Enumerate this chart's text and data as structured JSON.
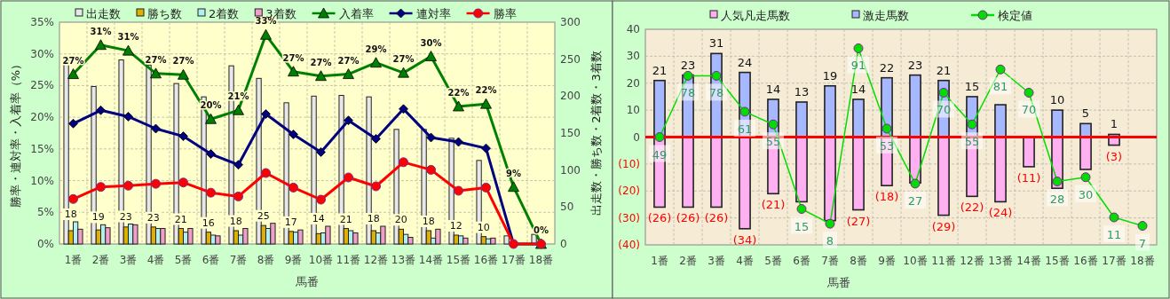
{
  "chart_data": [
    {
      "type": "bar",
      "categories": [
        "1番",
        "2番",
        "3番",
        "4番",
        "5番",
        "6番",
        "7番",
        "8番",
        "9番",
        "10番",
        "11番",
        "12番",
        "13番",
        "14番",
        "15番",
        "16番",
        "17番",
        "18番"
      ],
      "xlabel": "馬番",
      "ylabel": "勝率・連対率・入着率（%）",
      "y2label": "出走数・勝ち数・2着数・3着数",
      "ylim": [
        0,
        35
      ],
      "yticks": [
        {
          "value": 0,
          "label": "0%"
        },
        {
          "value": 5,
          "label": "5%"
        },
        {
          "value": 10,
          "label": "10%"
        },
        {
          "value": 15,
          "label": "15%"
        },
        {
          "value": 20,
          "label": "20%"
        },
        {
          "value": 25,
          "label": "25%"
        },
        {
          "value": 30,
          "label": "30%"
        },
        {
          "value": 35,
          "label": "35%"
        }
      ],
      "y2lim": [
        0,
        300
      ],
      "y2ticks": [
        0,
        50,
        100,
        150,
        200,
        250,
        300
      ],
      "grid": true,
      "legend": "top",
      "series": [
        {
          "name": "出走数",
          "axis": "y2",
          "color": "#e8e8e8",
          "values": [
            253,
            213,
            249,
            242,
            217,
            199,
            241,
            224,
            191,
            200,
            201,
            199,
            155,
            155,
            143,
            113,
            11,
            13
          ]
        },
        {
          "name": "勝ち数",
          "axis": "y2",
          "color": "#e0b000",
          "values": [
            18,
            19,
            23,
            23,
            21,
            16,
            18,
            25,
            17,
            14,
            21,
            18,
            20,
            18,
            12,
            10,
            0,
            0
          ],
          "value_labels": [
            "18",
            "19",
            "23",
            "23",
            "21",
            "16",
            "18",
            "25",
            "17",
            "14",
            "21",
            "18",
            "20",
            "18",
            "12",
            "10",
            null,
            null
          ]
        },
        {
          "name": "2着数",
          "axis": "y2",
          "color": "#b0f0f0",
          "values": [
            30,
            26,
            27,
            21,
            16,
            12,
            12,
            21,
            16,
            15,
            18,
            15,
            13,
            8,
            11,
            7,
            0,
            0
          ]
        },
        {
          "name": "3着数",
          "axis": "y2",
          "color": "#f0a0c8",
          "values": [
            20,
            22,
            26,
            21,
            21,
            11,
            21,
            28,
            19,
            24,
            15,
            24,
            9,
            20,
            8,
            8,
            0,
            0
          ]
        },
        {
          "name": "入着率",
          "type": "line",
          "axis": "y",
          "color": "#008000",
          "marker": "triangle",
          "values": [
            26.8,
            31.4,
            30.5,
            26.9,
            26.7,
            19.7,
            21.1,
            33.0,
            27.2,
            26.5,
            26.8,
            28.6,
            27.0,
            29.6,
            21.7,
            22.1,
            9.0,
            0
          ],
          "value_labels": [
            "27%",
            "31%",
            "31%",
            "27%",
            "27%",
            "20%",
            "21%",
            "33%",
            "27%",
            "27%",
            "27%",
            "29%",
            "27%",
            "30%",
            "22%",
            "22%",
            "9%",
            "0%"
          ]
        },
        {
          "name": "連対率",
          "type": "line",
          "axis": "y",
          "color": "#000080",
          "marker": "diamond",
          "values": [
            19.0,
            21.1,
            20.1,
            18.2,
            17.0,
            14.2,
            12.5,
            20.5,
            17.3,
            14.5,
            19.5,
            16.6,
            21.3,
            16.8,
            16.1,
            15.1,
            0,
            0
          ]
        },
        {
          "name": "勝率",
          "type": "line",
          "axis": "y",
          "color": "#ff0000",
          "marker": "circle",
          "values": [
            7.1,
            9.0,
            9.2,
            9.5,
            9.7,
            8.1,
            7.5,
            11.2,
            8.9,
            7.0,
            10.5,
            9.1,
            12.9,
            11.7,
            8.4,
            8.9,
            0,
            0
          ]
        }
      ]
    },
    {
      "type": "bar",
      "stacked": true,
      "categories": [
        "1番",
        "2番",
        "3番",
        "4番",
        "5番",
        "6番",
        "7番",
        "8番",
        "9番",
        "10番",
        "11番",
        "12番",
        "13番",
        "14番",
        "15番",
        "16番",
        "17番",
        "18番"
      ],
      "xlabel": "馬番",
      "ylim": [
        -40,
        40
      ],
      "yticks": [
        {
          "value": -40,
          "label": "(40)"
        },
        {
          "value": -30,
          "label": "(30)"
        },
        {
          "value": -20,
          "label": "(20)"
        },
        {
          "value": -10,
          "label": "(10)"
        },
        0,
        10,
        20,
        30,
        40
      ],
      "y2lim": [
        -2,
        100
      ],
      "tick_labels": "xy",
      "grid": true,
      "legend": "top",
      "ref_lines": [
        {
          "axis": "y",
          "value": 0,
          "color": "#ff0000"
        }
      ],
      "series": [
        {
          "name": "人気凡走馬数",
          "color": "#ffb0f0",
          "values": [
            -26,
            -26,
            -26,
            -34,
            -21,
            -24,
            -31,
            -27,
            -18,
            -17,
            -29,
            -22,
            -24,
            -11,
            -19,
            -12,
            -3,
            null
          ],
          "value_labels": [
            "(26)",
            "(26)",
            "(26)",
            "(34)",
            "(21)",
            null,
            null,
            "(27)",
            "(18)",
            null,
            "(29)",
            "(22)",
            "(24)",
            "(11)",
            null,
            null,
            "(3)",
            null
          ]
        },
        {
          "name": "激走馬数",
          "color": "#a8b8ff",
          "values": [
            21,
            23,
            31,
            24,
            14,
            13,
            19,
            14,
            22,
            23,
            21,
            15,
            12,
            null,
            10,
            5,
            1,
            null
          ],
          "value_labels": [
            "21",
            "23",
            "31",
            "24",
            "14",
            "13",
            "19",
            "14",
            "22",
            "23",
            "21",
            "15",
            null,
            null,
            "10",
            "5",
            "1",
            null
          ]
        },
        {
          "name": "検定値",
          "type": "line",
          "axis": "y2",
          "color": "#00dd00",
          "marker": "circle",
          "values": [
            49,
            78,
            78,
            61,
            55,
            15,
            8,
            91,
            53,
            27,
            70,
            55,
            81,
            70,
            28,
            30,
            11,
            7
          ],
          "value_labels": [
            "49",
            "78",
            "78",
            "61",
            "55",
            "15",
            "8",
            "91",
            "53",
            "27",
            "70",
            "55",
            "81",
            "70",
            "28",
            "30",
            "11",
            "7"
          ]
        }
      ]
    }
  ]
}
